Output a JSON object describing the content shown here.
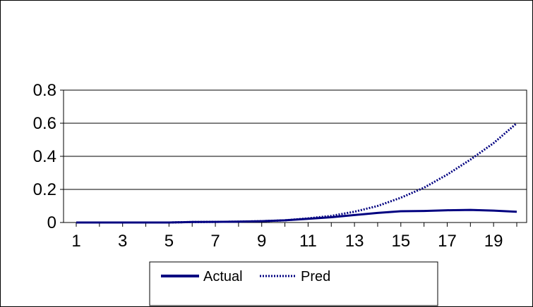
{
  "chart_data": {
    "type": "line",
    "title": "",
    "xlabel": "",
    "ylabel": "",
    "x": [
      1,
      2,
      3,
      4,
      5,
      6,
      7,
      8,
      9,
      10,
      11,
      12,
      13,
      14,
      15,
      16,
      17,
      18,
      19,
      20
    ],
    "x_tick_labels": [
      "1",
      "3",
      "5",
      "7",
      "9",
      "11",
      "13",
      "15",
      "17",
      "19"
    ],
    "y_tick_labels": [
      "0",
      "0.2",
      "0.4",
      "0.6",
      "0.8"
    ],
    "ylim": [
      0,
      0.8
    ],
    "grid": "horizontal",
    "legend_position": "bottom",
    "series": [
      {
        "name": "Actual",
        "style": "solid",
        "color": "#000080",
        "values": [
          0,
          0,
          0,
          0,
          0,
          0.003,
          0.004,
          0.005,
          0.008,
          0.013,
          0.022,
          0.032,
          0.045,
          0.058,
          0.068,
          0.07,
          0.074,
          0.076,
          0.072,
          0.065
        ]
      },
      {
        "name": "Pred",
        "style": "dotted",
        "color": "#000080",
        "values": [
          0,
          0,
          0,
          0,
          0,
          0.003,
          0.004,
          0.005,
          0.008,
          0.013,
          0.025,
          0.04,
          0.065,
          0.1,
          0.15,
          0.21,
          0.29,
          0.38,
          0.48,
          0.6
        ]
      }
    ]
  }
}
